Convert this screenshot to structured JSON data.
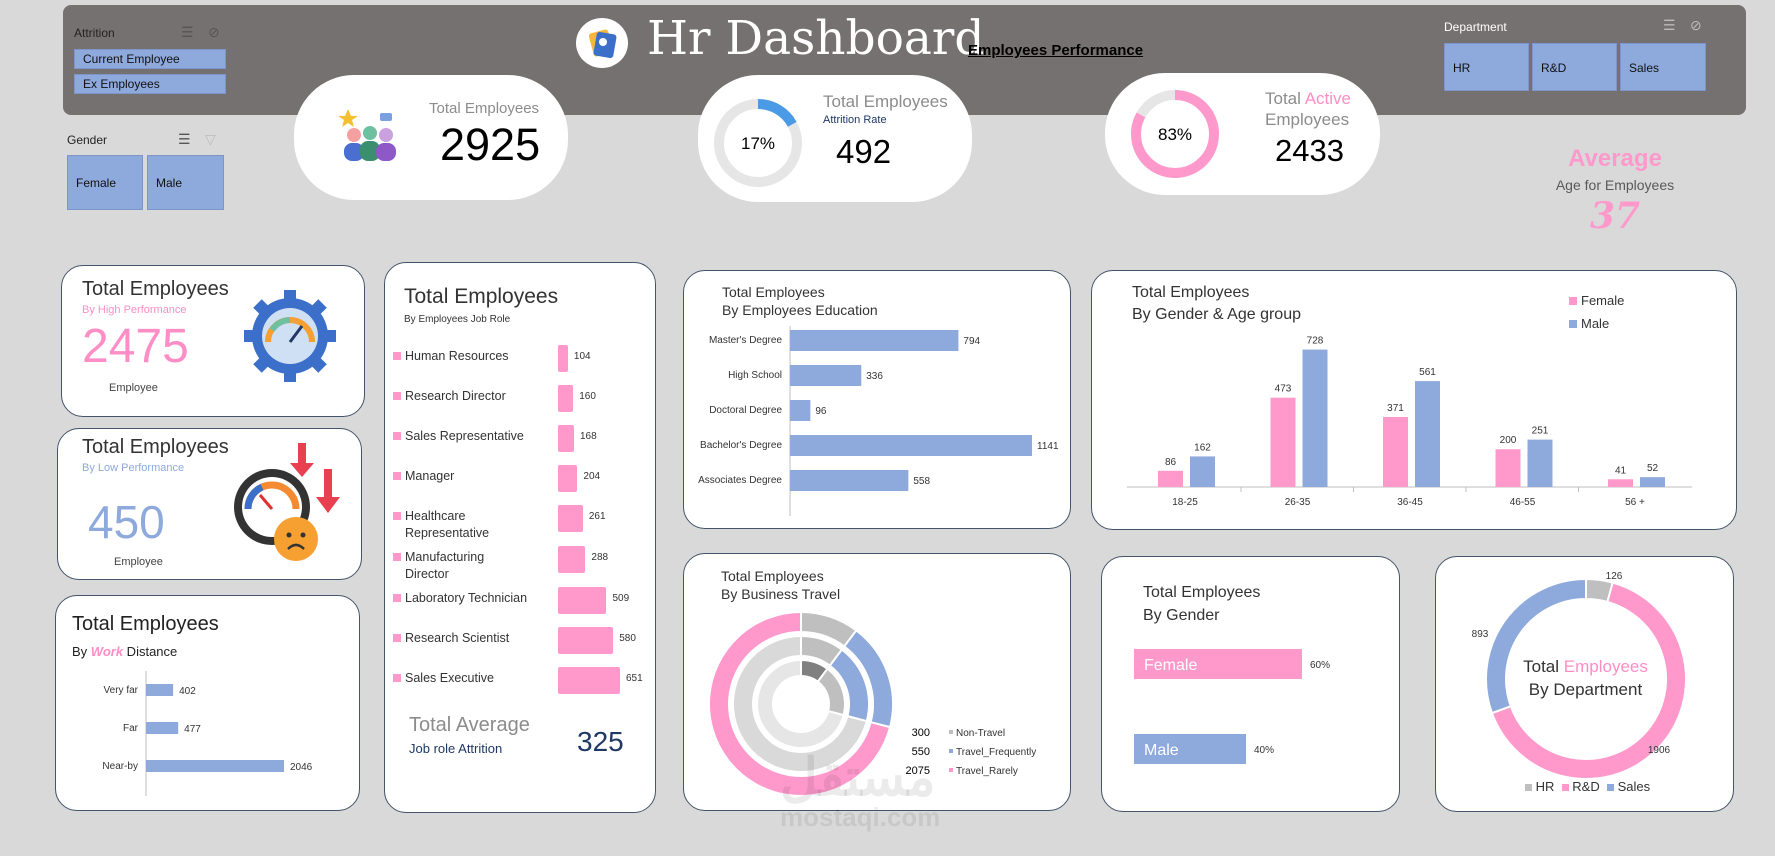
{
  "header": {
    "title": "Hr Dashboard",
    "subtitle": "Employees Performance"
  },
  "slicers": {
    "attrition": {
      "title": "Attrition",
      "options": [
        "Current Employee",
        "Ex Employees"
      ]
    },
    "gender": {
      "title": "Gender",
      "options": [
        "Female",
        "Male"
      ]
    },
    "department": {
      "title": "Department",
      "options": [
        "HR",
        "R&D",
        "Sales"
      ]
    }
  },
  "kpis": {
    "total": {
      "label": "Total Employees",
      "value": "2925"
    },
    "attrition": {
      "label": "Total Employees",
      "sublabel": "Attrition Rate",
      "value": "492",
      "percent": "17%",
      "fraction": 0.17
    },
    "active": {
      "label_a": "Total ",
      "label_b": "Active",
      "label_c": "Employees",
      "value": "2433",
      "percent": "83%",
      "fraction": 0.83
    },
    "average_age": {
      "title": "Average",
      "sub": "Age for Employees",
      "value": "37"
    }
  },
  "high_perf": {
    "title": "Total Employees",
    "sub": "By High Performance",
    "value": "2475",
    "unit": "Employee"
  },
  "low_perf": {
    "title": "Total Employees",
    "sub": "By Low Performance",
    "value": "450",
    "unit": "Employee"
  },
  "distance": {
    "title": "Total Employees",
    "sub_a": "By ",
    "sub_b": "Work",
    "sub_c": " Distance",
    "chart_data": {
      "type": "bar",
      "categories": [
        "Very far",
        "Far",
        "Near-by"
      ],
      "values": [
        402,
        477,
        2046
      ],
      "xlim": [
        0,
        2046
      ]
    }
  },
  "job_role": {
    "title": "Total Employees",
    "sub": "By Employees Job Role",
    "chart_data": {
      "type": "bar",
      "categories": [
        "Human Resources",
        "Research Director",
        "Sales Representative",
        "Manager",
        "Healthcare Representative",
        "Manufacturing Director",
        "Laboratory Technician",
        "Research Scientist",
        "Sales Executive"
      ],
      "values": [
        104,
        160,
        168,
        204,
        261,
        288,
        509,
        580,
        651
      ]
    },
    "avg_title": "Total Average",
    "avg_sub": "Job role Attrition",
    "avg_value": "325"
  },
  "education": {
    "title": "Total Employees",
    "sub": "By Employees Education",
    "chart_data": {
      "type": "bar",
      "categories": [
        "Master's Degree",
        "High School",
        "Doctoral Degree",
        "Bachelor's Degree",
        "Associates Degree"
      ],
      "values": [
        794,
        336,
        96,
        1141,
        558
      ]
    }
  },
  "gender_age": {
    "title": "Total Employees",
    "sub": "By Gender  & Age group",
    "chart_data": {
      "type": "bar",
      "categories": [
        "18-25",
        "26-35",
        "36-45",
        "46-55",
        "56 +"
      ],
      "series": [
        {
          "name": "Female",
          "values": [
            86,
            473,
            371,
            200,
            41
          ]
        },
        {
          "name": "Male",
          "values": [
            162,
            728,
            561,
            251,
            52
          ]
        }
      ],
      "ylim": [
        0,
        800
      ]
    }
  },
  "travel": {
    "title": "Total Employees",
    "sub": "By Business Travel",
    "chart_data": {
      "type": "pie",
      "categories": [
        "Non-Travel",
        "Travel_Frequently",
        "Travel_Rarely"
      ],
      "values": [
        300,
        550,
        2075
      ]
    }
  },
  "gender": {
    "title": "Total Employees",
    "sub": "By Gender",
    "chart_data": {
      "type": "bar",
      "categories": [
        "Female",
        "Male"
      ],
      "values": [
        0.6,
        0.4
      ],
      "labels": [
        "60%",
        "40%"
      ]
    }
  },
  "department": {
    "title_a": "Total ",
    "title_b": "Employees",
    "title_c": "By Department",
    "chart_data": {
      "type": "pie",
      "categories": [
        "HR",
        "R&D",
        "Sales"
      ],
      "values": [
        126,
        1906,
        893
      ]
    }
  },
  "watermark": {
    "text_ar": "مستقل",
    "text_en": "mostaqi.com"
  },
  "colors": {
    "pink": "#ff99cc",
    "blue": "#8ea9db",
    "grey": "#bfbfbf",
    "topbar": "#767171"
  }
}
